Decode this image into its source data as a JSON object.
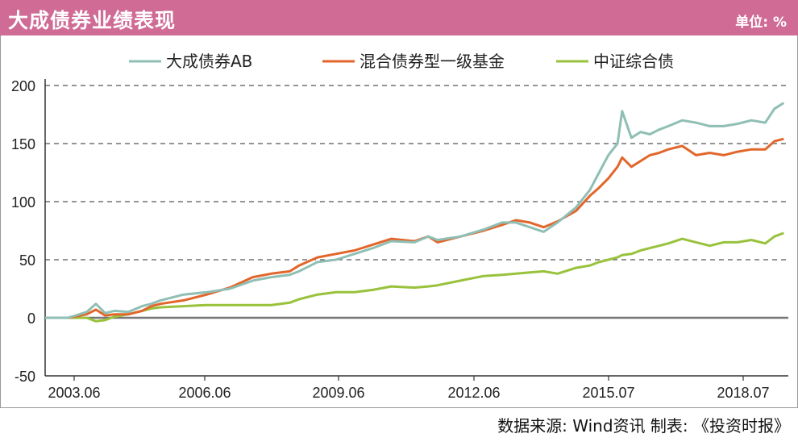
{
  "header": {
    "title": "大成债券业绩表现",
    "unit": "单位: %"
  },
  "source": "数据来源: Wind资讯  制表: 《投资时报》",
  "colors": {
    "header_bg": "#d06b96",
    "dacheng": "#8fbfb4",
    "mixed": "#e2662b",
    "index": "#98c23c",
    "axis": "#333333",
    "grid": "#555555"
  },
  "chart_data": {
    "type": "line",
    "title": "大成债券业绩表现",
    "ylim": [
      -50,
      200
    ],
    "yticks": [
      -50,
      0,
      50,
      100,
      150,
      200
    ],
    "xticks": [
      "2003.06",
      "2006.06",
      "2009.06",
      "2012.06",
      "2015.07",
      "2018.07"
    ],
    "xlim": [
      2003.5,
      2019.6
    ],
    "grid": "horizontal dashed",
    "legend_position": "top",
    "series": [
      {
        "name": "大成债券AB",
        "color": "#8fbfb4",
        "x": [
          2003.5,
          2004.0,
          2004.4,
          2004.6,
          2004.8,
          2005.0,
          2005.3,
          2005.6,
          2005.8,
          2006.0,
          2006.5,
          2007.0,
          2007.5,
          2008.0,
          2008.4,
          2008.8,
          2009.0,
          2009.4,
          2009.8,
          2010.2,
          2010.6,
          2011.0,
          2011.5,
          2011.8,
          2012.0,
          2012.5,
          2013.0,
          2013.4,
          2013.7,
          2014.0,
          2014.3,
          2014.6,
          2015.0,
          2015.3,
          2015.5,
          2015.7,
          2015.9,
          2016.0,
          2016.2,
          2016.4,
          2016.6,
          2016.8,
          2017.0,
          2017.3,
          2017.6,
          2017.9,
          2018.2,
          2018.5,
          2018.8,
          2019.1,
          2019.3,
          2019.5
        ],
        "values": [
          0,
          0,
          5,
          12,
          4,
          6,
          5,
          10,
          12,
          15,
          20,
          22,
          25,
          32,
          35,
          37,
          40,
          48,
          50,
          55,
          60,
          66,
          65,
          70,
          67,
          70,
          76,
          82,
          82,
          78,
          74,
          82,
          95,
          110,
          125,
          140,
          150,
          178,
          155,
          160,
          158,
          162,
          165,
          170,
          168,
          165,
          165,
          167,
          170,
          168,
          180,
          185
        ]
      },
      {
        "name": "混合债券型一级基金",
        "color": "#e2662b",
        "x": [
          2003.5,
          2004.0,
          2004.4,
          2004.6,
          2004.8,
          2005.0,
          2005.3,
          2005.6,
          2005.8,
          2006.0,
          2006.5,
          2007.0,
          2007.5,
          2008.0,
          2008.4,
          2008.8,
          2009.0,
          2009.4,
          2009.8,
          2010.2,
          2010.6,
          2011.0,
          2011.5,
          2011.8,
          2012.0,
          2012.5,
          2013.0,
          2013.4,
          2013.7,
          2014.0,
          2014.3,
          2014.6,
          2015.0,
          2015.3,
          2015.5,
          2015.7,
          2015.9,
          2016.0,
          2016.2,
          2016.4,
          2016.6,
          2016.8,
          2017.0,
          2017.3,
          2017.6,
          2017.9,
          2018.2,
          2018.5,
          2018.8,
          2019.1,
          2019.3,
          2019.5
        ],
        "values": [
          0,
          0,
          3,
          7,
          2,
          3,
          3,
          6,
          10,
          12,
          15,
          20,
          26,
          35,
          38,
          40,
          45,
          52,
          55,
          58,
          63,
          68,
          66,
          70,
          65,
          70,
          75,
          80,
          84,
          82,
          78,
          83,
          92,
          105,
          112,
          120,
          130,
          138,
          130,
          135,
          140,
          142,
          145,
          148,
          140,
          142,
          140,
          143,
          145,
          145,
          152,
          154
        ]
      },
      {
        "name": "中证综合债",
        "color": "#98c23c",
        "x": [
          2003.5,
          2004.0,
          2004.4,
          2004.6,
          2004.8,
          2005.0,
          2005.3,
          2005.6,
          2005.8,
          2006.0,
          2006.5,
          2007.0,
          2007.5,
          2008.0,
          2008.4,
          2008.8,
          2009.0,
          2009.4,
          2009.8,
          2010.2,
          2010.6,
          2011.0,
          2011.5,
          2011.8,
          2012.0,
          2012.5,
          2013.0,
          2013.4,
          2013.7,
          2014.0,
          2014.3,
          2014.6,
          2015.0,
          2015.3,
          2015.5,
          2015.7,
          2015.9,
          2016.0,
          2016.2,
          2016.4,
          2016.6,
          2016.8,
          2017.0,
          2017.3,
          2017.6,
          2017.9,
          2018.2,
          2018.5,
          2018.8,
          2019.1,
          2019.3,
          2019.5
        ],
        "values": [
          0,
          0,
          0,
          -3,
          -2,
          1,
          3,
          6,
          8,
          9,
          10,
          11,
          11,
          11,
          11,
          13,
          16,
          20,
          22,
          22,
          24,
          27,
          26,
          27,
          28,
          32,
          36,
          37,
          38,
          39,
          40,
          38,
          43,
          45,
          48,
          50,
          52,
          54,
          55,
          58,
          60,
          62,
          64,
          68,
          65,
          62,
          65,
          65,
          67,
          64,
          70,
          73
        ]
      }
    ]
  }
}
